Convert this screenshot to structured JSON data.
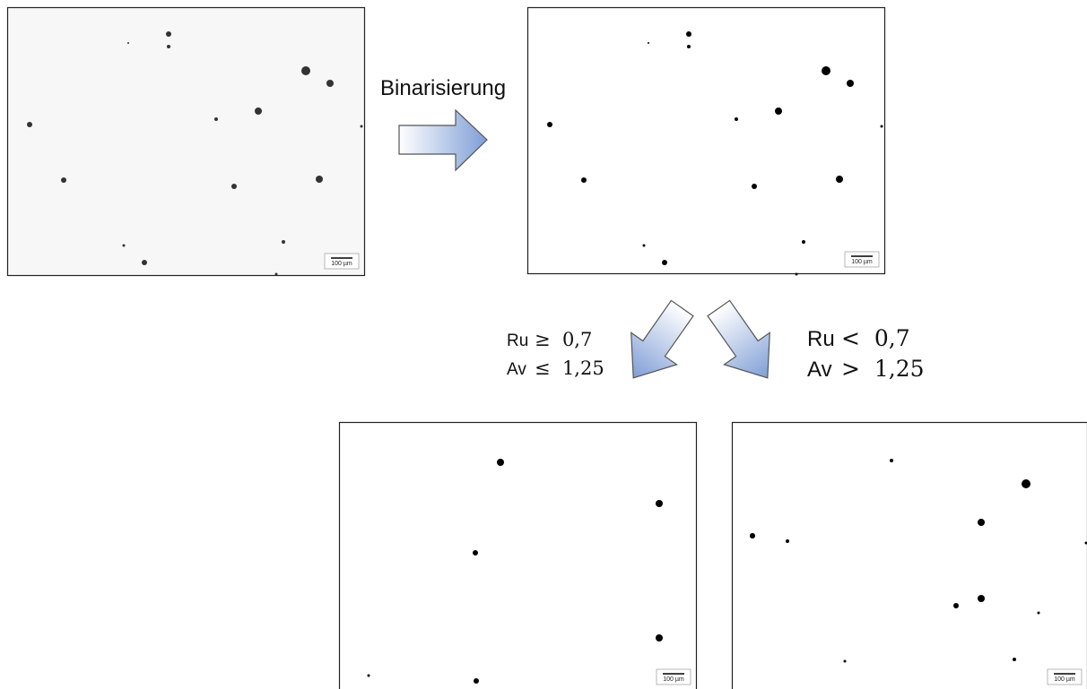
{
  "arrow_label": "Binarisierung",
  "images": [
    {
      "scale_bar": "100 µm"
    },
    {
      "scale_bar": "100 µm"
    },
    {
      "scale_bar": "100 µm"
    },
    {
      "scale_bar": "100 µm"
    }
  ],
  "branches": [
    {
      "lines": [
        {
          "variable": "Ru",
          "condition": "≥  0,7"
        },
        {
          "variable": "Av",
          "condition": "≤  1,25"
        }
      ]
    },
    {
      "lines": [
        {
          "variable": "Ru",
          "condition": "<  0,7"
        },
        {
          "variable": "Av",
          "condition": ">  1,25"
        }
      ]
    }
  ]
}
